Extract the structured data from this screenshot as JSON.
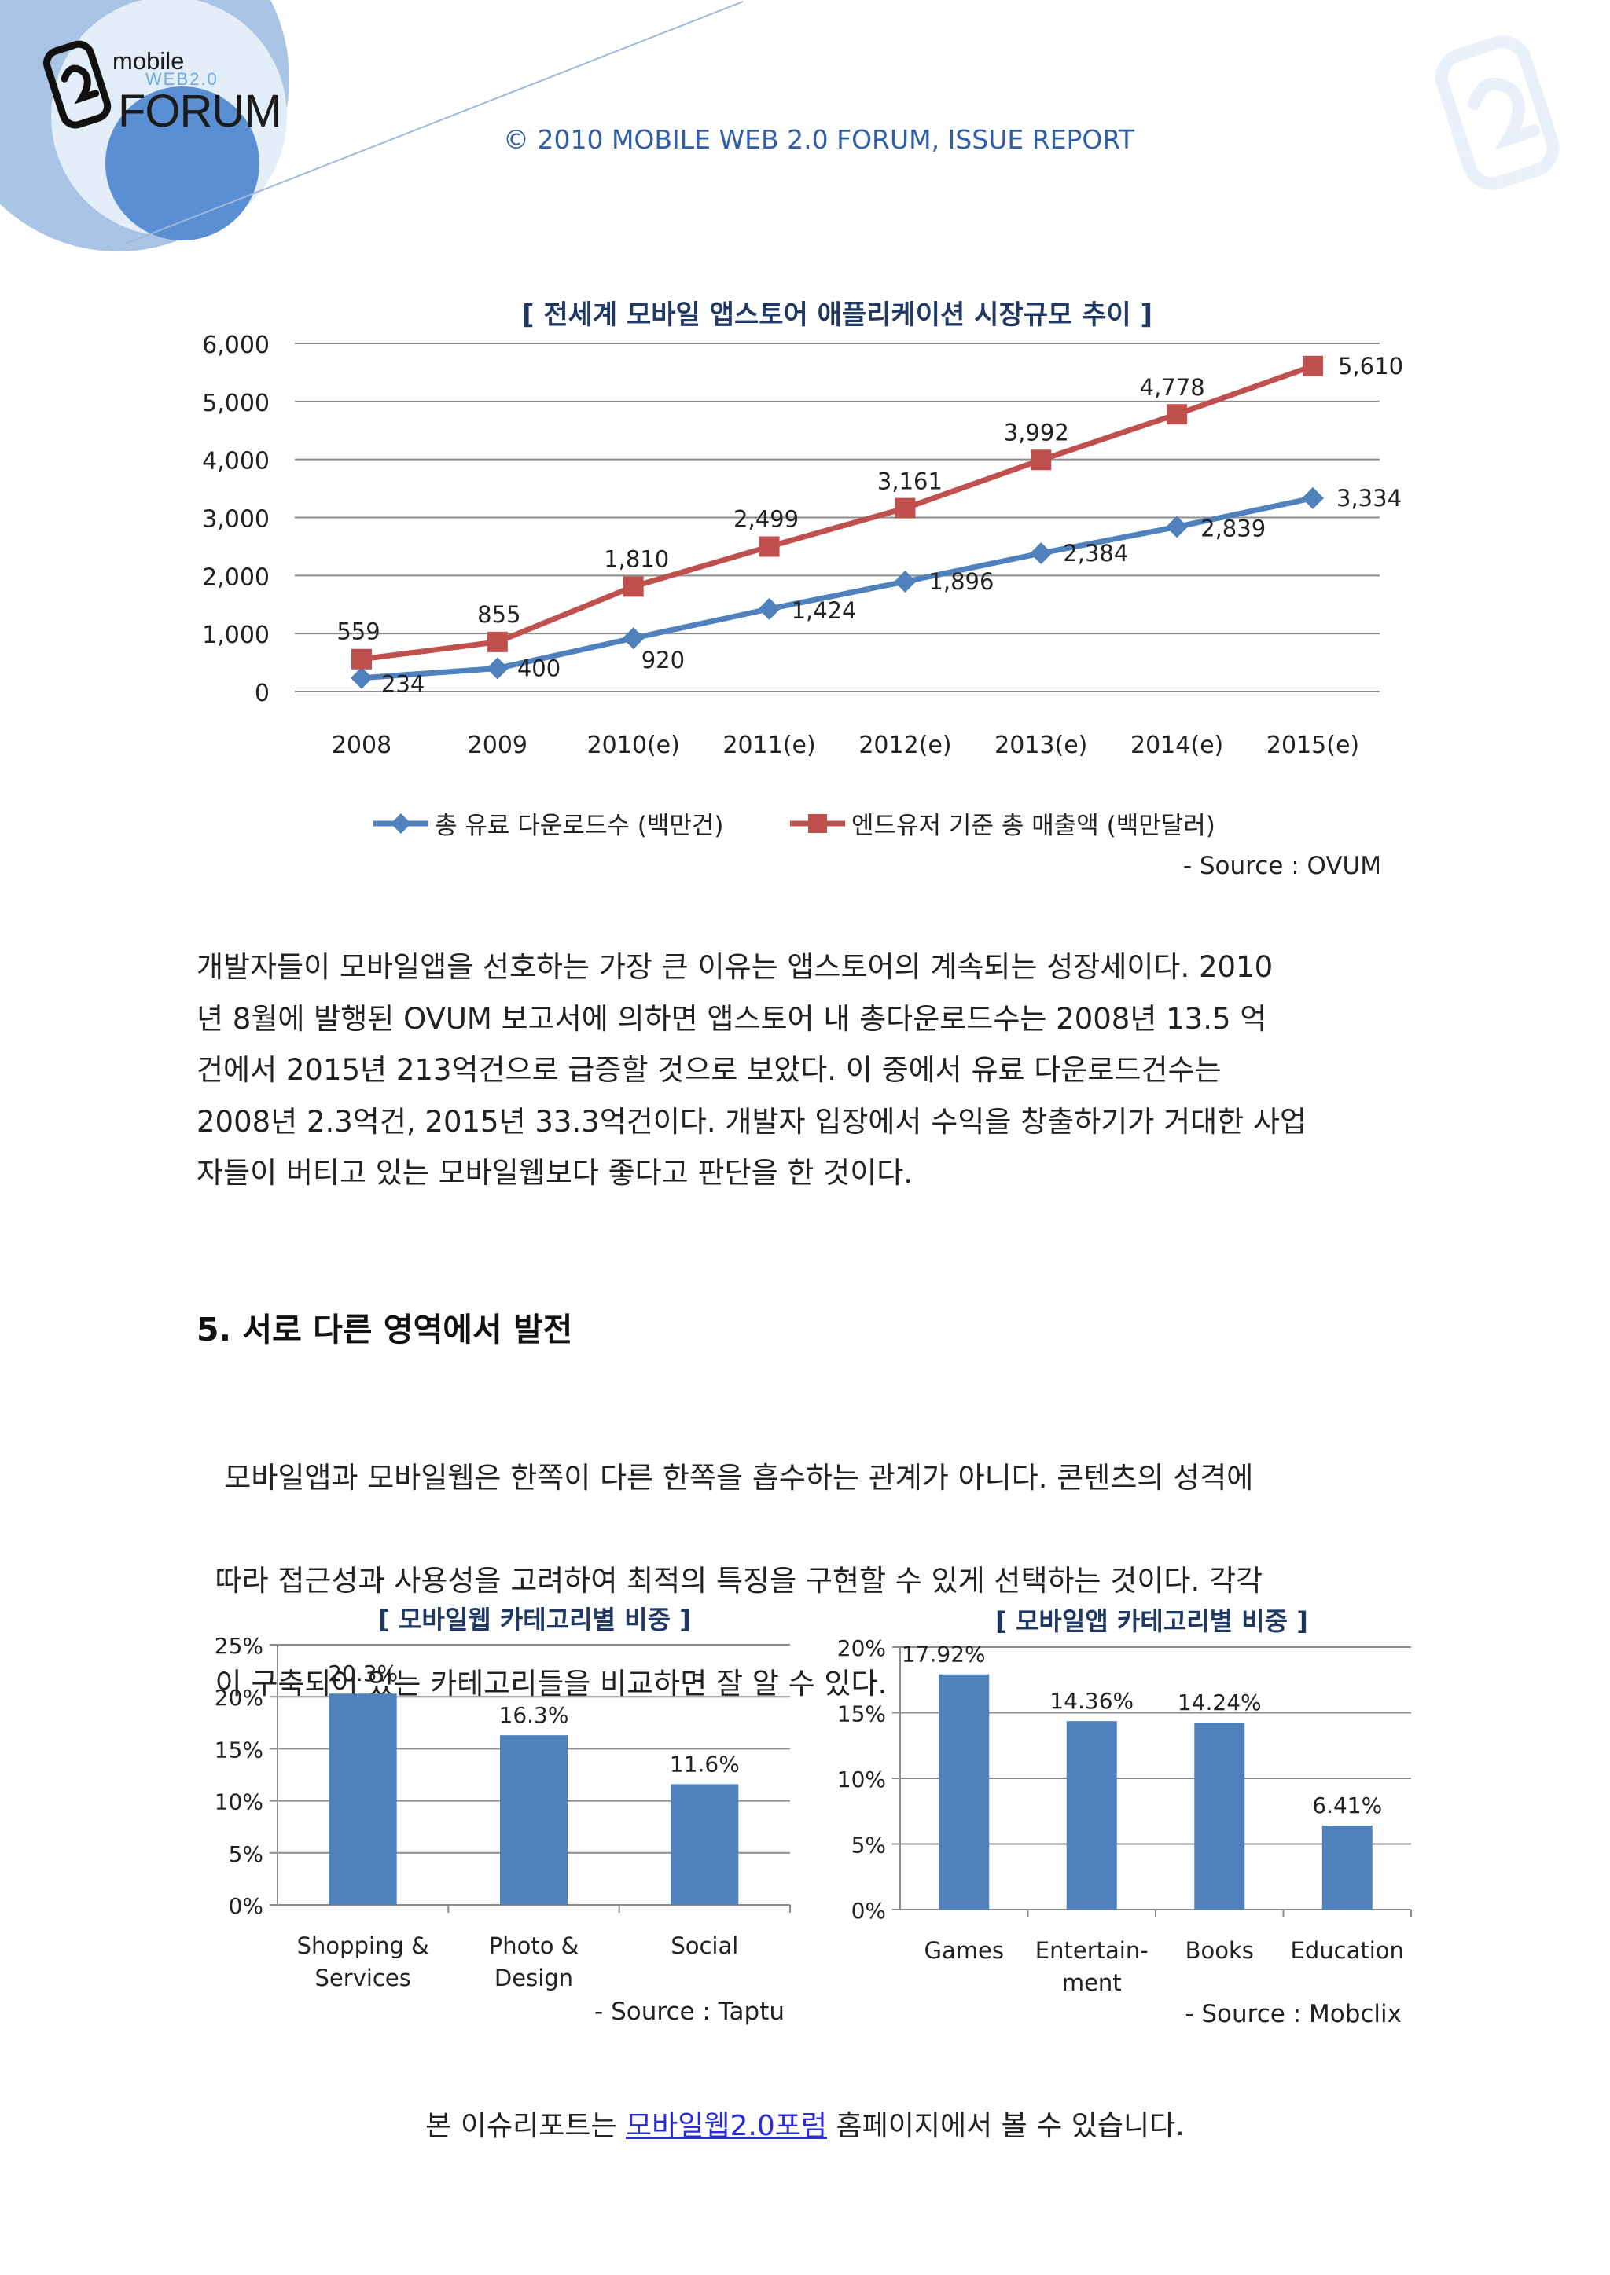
{
  "header": {
    "logo": {
      "mobile": "mobile",
      "web": "WEB2.0",
      "forum": "FORUM"
    },
    "copyright": "© 2010 MOBILE WEB 2.0 FORUM, ISSUE REPORT"
  },
  "chart1": {
    "chart_data": {
      "type": "line",
      "title": "[ 전세계 모바일 앱스토어 애플리케이션 시장규모 추이 ]",
      "categories": [
        "2008",
        "2009",
        "2010(e)",
        "2011(e)",
        "2012(e)",
        "2013(e)",
        "2014(e)",
        "2015(e)"
      ],
      "yticks": [
        "6,000",
        "5,000",
        "4,000",
        "3,000",
        "2,000",
        "1,000",
        "0"
      ],
      "ylim": [
        0,
        6000
      ],
      "grid": true,
      "legend": "bottom",
      "series": [
        {
          "name": "총 유료 다운로드수 (백만건)",
          "color": "#4f81bd",
          "marker": "diamond",
          "values": [
            234,
            400,
            920,
            1424,
            1896,
            2384,
            2839,
            3334
          ],
          "labels": [
            "234",
            "400",
            "920",
            "1,424",
            "1,896",
            "2,384",
            "2,839",
            "3,334"
          ]
        },
        {
          "name": "엔드유저 기준 총 매출액 (백만달러)",
          "color": "#c0504d",
          "marker": "square",
          "values": [
            559,
            855,
            1810,
            2499,
            3161,
            3992,
            4778,
            5610
          ],
          "labels": [
            "559",
            "855",
            "1,810",
            "2,499",
            "3,161",
            "3,992",
            "4,778",
            "5,610"
          ]
        }
      ],
      "source": "- Source : OVUM"
    }
  },
  "paragraph1": [
    "개발자들이 모바일앱을 선호하는 가장 큰 이유는 앱스토어의 계속되는 성장세이다. 2010",
    "년 8월에 발행된 OVUM 보고서에 의하면 앱스토어 내 총다운로드수는 2008년 13.5 억",
    "건에서 2015년 213억건으로 급증할 것으로 보았다. 이 중에서 유료 다운로드건수는",
    "2008년 2.3억건, 2015년 33.3억건이다. 개발자 입장에서 수익을 창출하기가 거대한 사업",
    "자들이 버티고 있는 모바일웹보다 좋다고 판단을 한 것이다."
  ],
  "section5": {
    "title": "5. 서로 다른 영역에서 발전",
    "paragraph": [
      " 모바일앱과 모바일웹은 한쪽이 다른 한쪽을 흡수하는 관계가 아니다. 콘텐츠의 성격에",
      "따라 접근성과 사용성을 고려하여 최적의 특징을 구현할 수 있게 선택하는 것이다. 각각",
      "이 구축되어 있는 카테고리들을 비교하면 잘 알 수 있다."
    ]
  },
  "chart2": {
    "chart_data": {
      "type": "bar",
      "title": "[ 모바일웹 카테고리별 비중 ]",
      "categories": [
        [
          "Shopping &",
          "Services"
        ],
        [
          "Photo &",
          "Design"
        ],
        [
          "Social"
        ]
      ],
      "values": [
        20.3,
        16.3,
        11.6
      ],
      "labels": [
        "20.3%",
        "16.3%",
        "11.6%"
      ],
      "yticks": [
        "25%",
        "20%",
        "15%",
        "10%",
        "5%",
        "0%"
      ],
      "ylim": [
        0,
        25
      ],
      "grid": true,
      "color": "#4f81bd",
      "source": "- Source : Taptu"
    }
  },
  "chart3": {
    "chart_data": {
      "type": "bar",
      "title": "[ 모바일앱 카테고리별 비중 ]",
      "categories": [
        [
          "Games"
        ],
        [
          "Entertain-",
          "ment"
        ],
        [
          "Books"
        ],
        [
          "Education"
        ]
      ],
      "values": [
        17.92,
        14.36,
        14.24,
        6.41
      ],
      "labels": [
        "17.92%",
        "14.36%",
        "14.24%",
        "6.41%"
      ],
      "yticks": [
        "20%",
        "15%",
        "10%",
        "5%",
        "0%"
      ],
      "ylim": [
        0,
        20
      ],
      "grid": true,
      "color": "#4f81bd",
      "source": "- Source : Mobclix"
    }
  },
  "footer": {
    "before": "본 이슈리포트는 ",
    "link": "모바일웹2.0포럼",
    "after": " 홈페이지에서 볼 수 있습니다."
  }
}
